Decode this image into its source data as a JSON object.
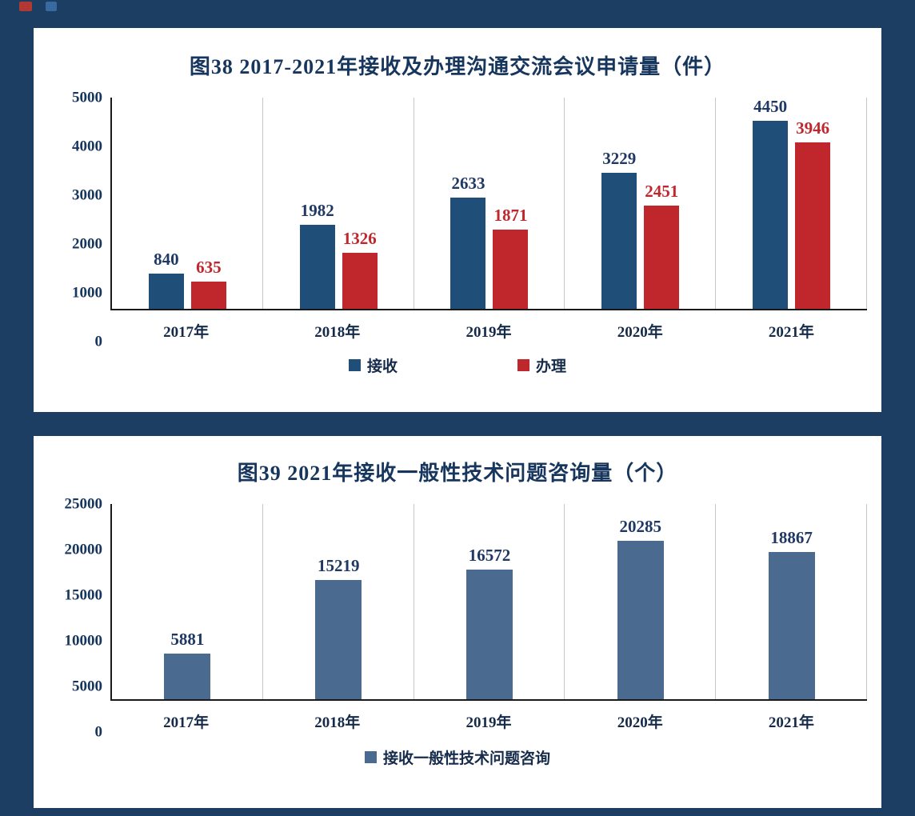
{
  "page": {
    "background_color": "#1d3e63",
    "panel_color": "#ffffff"
  },
  "charts": [
    {
      "type": "bar",
      "title": "图38  2017-2021年接收及办理沟通交流会议申请量（件）",
      "categories": [
        "2017年",
        "2018年",
        "2019年",
        "2020年",
        "2021年"
      ],
      "series": [
        {
          "name": "接收",
          "color": "#1f4e79",
          "label_color": "#1f3864",
          "values": [
            840,
            1982,
            2633,
            3229,
            4450
          ]
        },
        {
          "name": "办理",
          "color": "#c0272d",
          "label_color": "#c0272d",
          "values": [
            635,
            1326,
            1871,
            2451,
            3946
          ]
        }
      ],
      "ylim": [
        0,
        5000
      ],
      "yticks": [
        0,
        1000,
        2000,
        3000,
        4000,
        5000
      ],
      "legend_position": "bottom",
      "grid": "vertical-separators"
    },
    {
      "type": "bar",
      "title": "图39  2021年接收一般性技术问题咨询量（个）",
      "categories": [
        "2017年",
        "2018年",
        "2019年",
        "2020年",
        "2021年"
      ],
      "series": [
        {
          "name": "接收一般性技术问题咨询",
          "color": "#4a6b8f",
          "label_color": "#1f3864",
          "values": [
            5881,
            15219,
            16572,
            20285,
            18867
          ]
        }
      ],
      "ylim": [
        0,
        25000
      ],
      "yticks": [
        0,
        5000,
        10000,
        15000,
        20000,
        25000
      ],
      "legend_position": "bottom",
      "grid": "vertical-separators"
    }
  ]
}
